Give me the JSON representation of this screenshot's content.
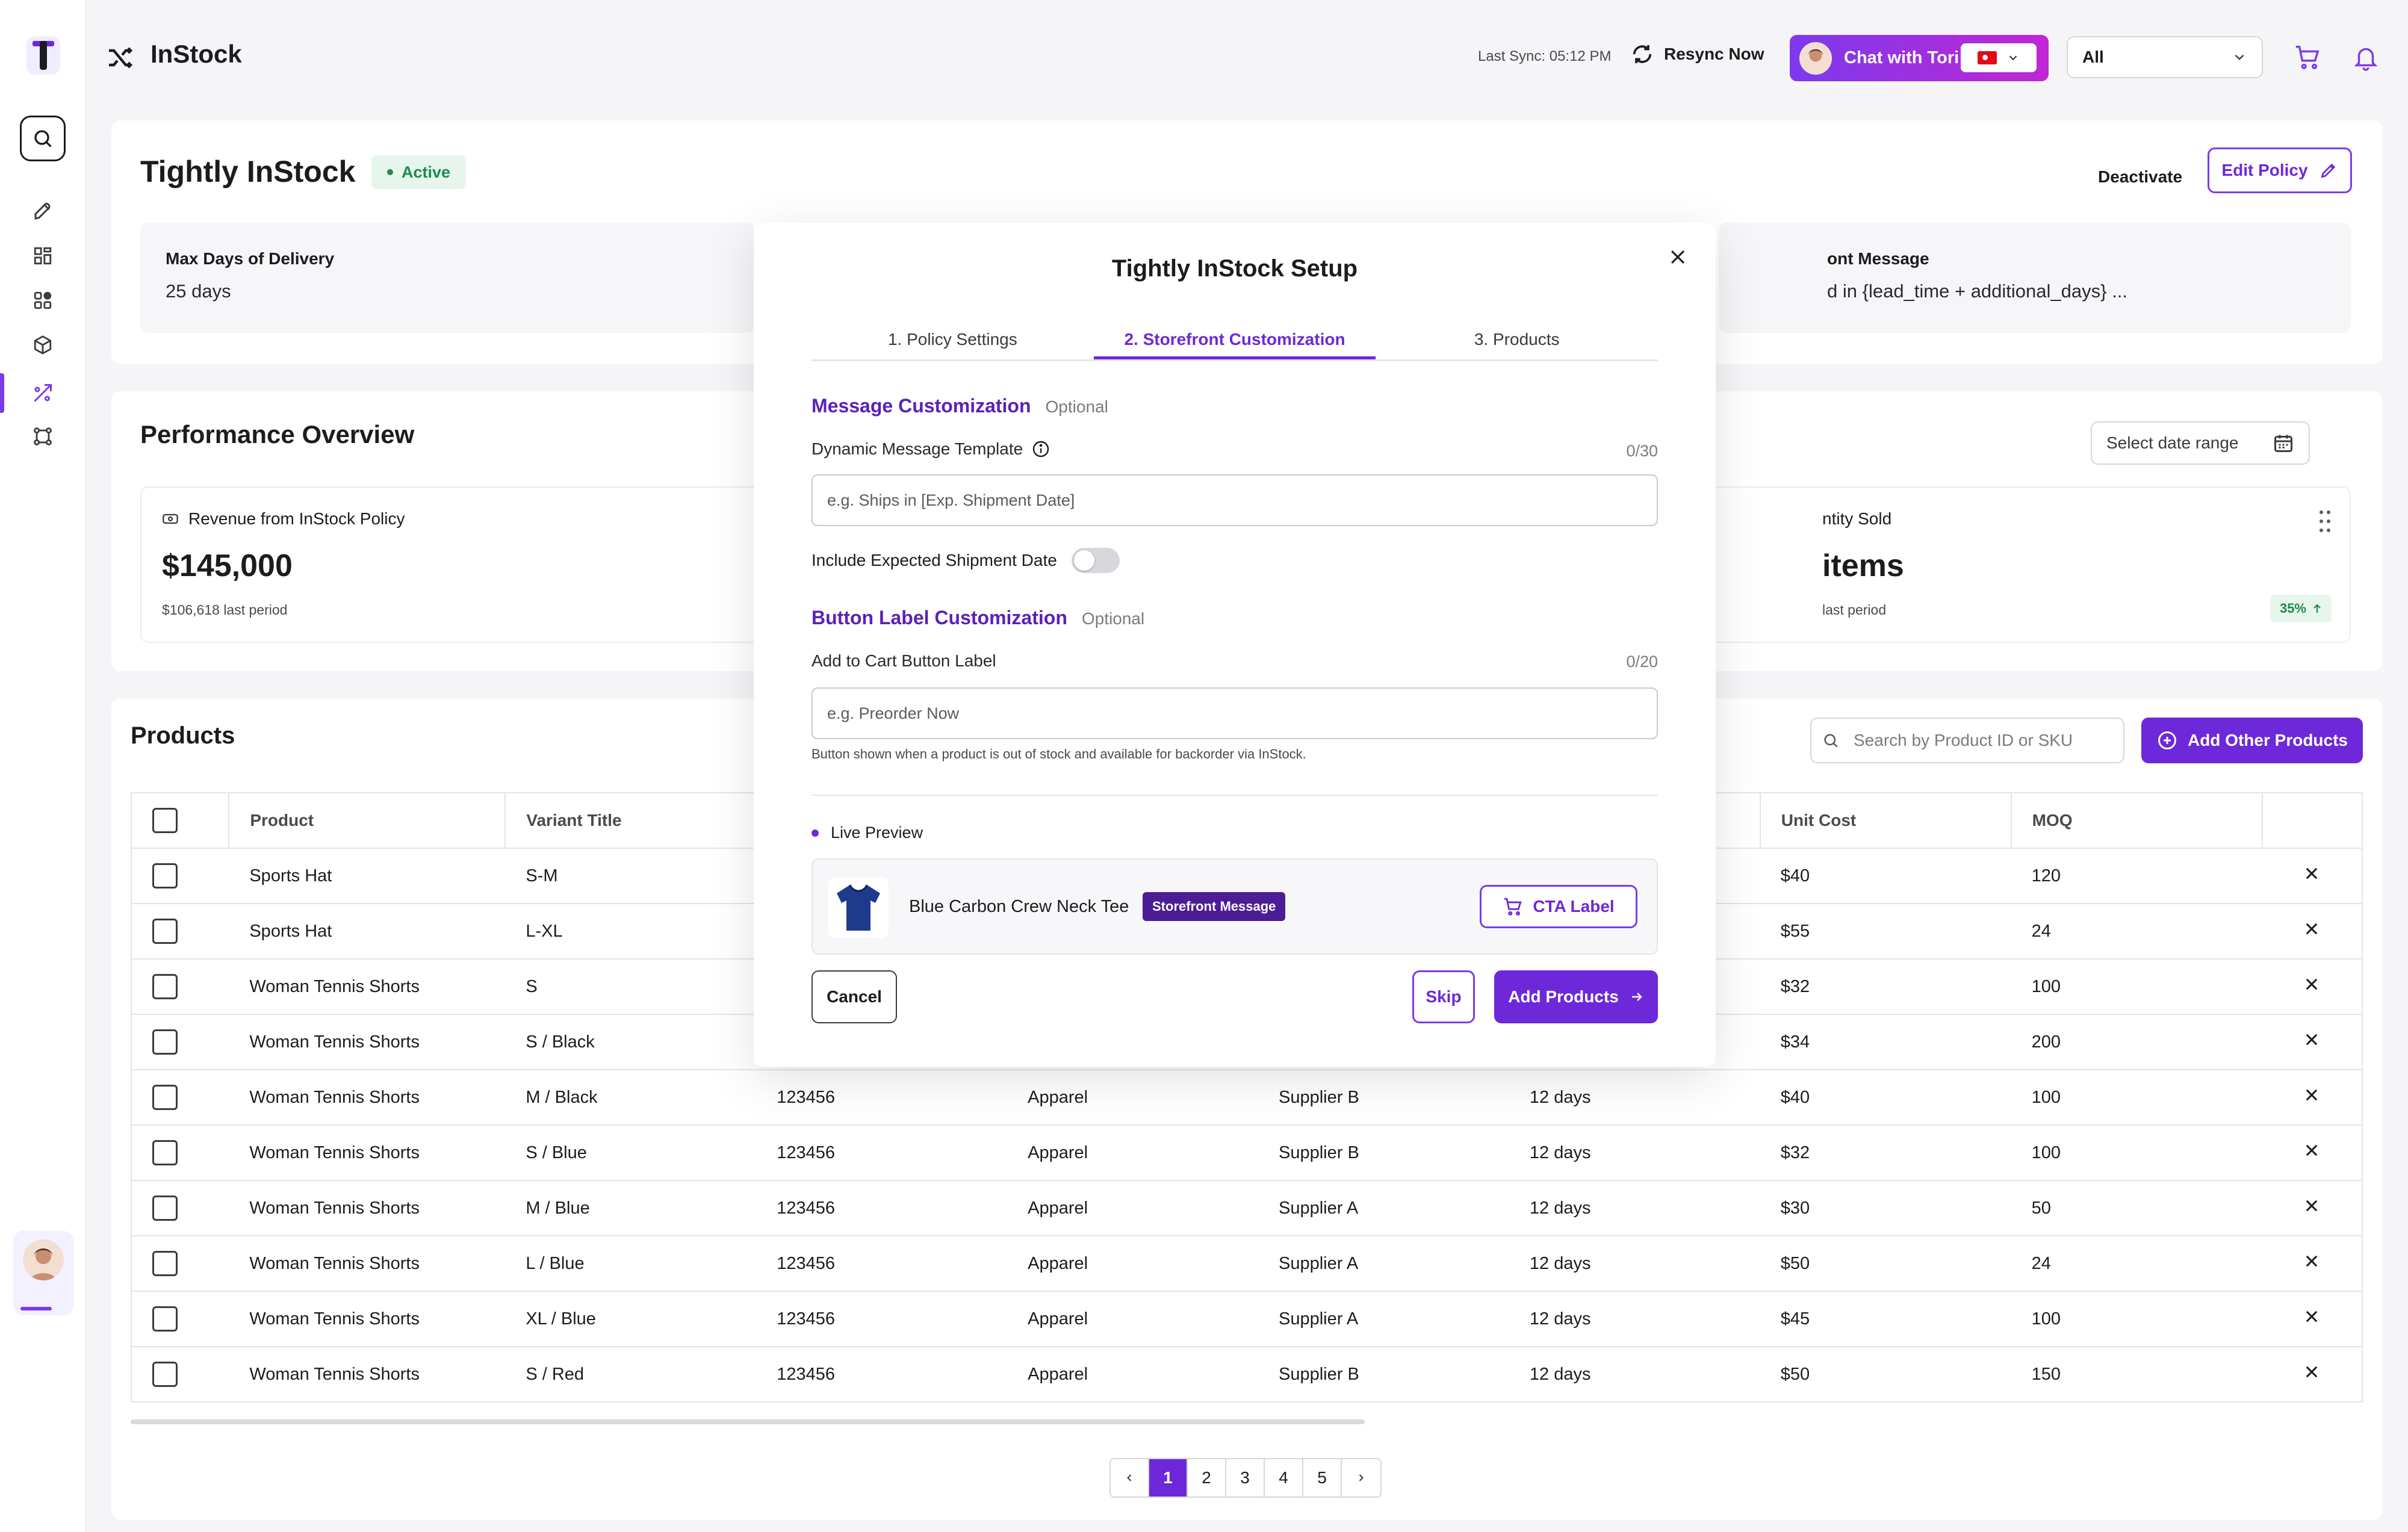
{
  "app": {
    "name": "InStock",
    "logo_letter": "T"
  },
  "header": {
    "last_sync": "Last Sync: 05:12 PM",
    "resync_label": "Resync Now",
    "chat_label": "Chat with Tori",
    "filter_value": "All"
  },
  "sidebar": {
    "items": [
      {
        "icon": "rocket-icon"
      },
      {
        "icon": "dashboard-icon"
      },
      {
        "icon": "apps-icon"
      },
      {
        "icon": "box-icon"
      },
      {
        "icon": "instock-icon",
        "active": true
      },
      {
        "icon": "workflow-icon"
      }
    ]
  },
  "policy": {
    "title": "Tightly InStock",
    "status": "Active",
    "deactivate_label": "Deactivate",
    "edit_label": "Edit Policy",
    "max_days_label": "Max Days of Delivery",
    "max_days_value": "25 days",
    "front_message_label": "ont Message",
    "front_message_value": "d in {lead_time + additional_days} ..."
  },
  "performance": {
    "title": "Performance Overview",
    "date_placeholder": "Select date range",
    "revenue_label": "Revenue from InStock Policy",
    "revenue_value": "$145,000",
    "revenue_sub": "$106,618 last period",
    "qty_label": "ntity Sold",
    "qty_value": "items",
    "qty_sub": "last period",
    "qty_change": "35%"
  },
  "products": {
    "title": "Products",
    "search_placeholder": "Search by Product ID or SKU",
    "add_label": "Add Other Products",
    "columns": [
      "Product",
      "Variant Title",
      "",
      "",
      "",
      "",
      "Unit Cost",
      "MOQ"
    ],
    "rows": [
      [
        "Sports Hat",
        "S-M",
        "",
        "",
        "",
        "",
        "$40",
        "120"
      ],
      [
        "Sports Hat",
        "L-XL",
        "",
        "",
        "",
        "",
        "$55",
        "24"
      ],
      [
        "Woman Tennis Shorts",
        "S",
        "",
        "",
        "",
        "",
        "$32",
        "100"
      ],
      [
        "Woman Tennis Shorts",
        "S / Black",
        "",
        "",
        "",
        "",
        "$34",
        "200"
      ],
      [
        "Woman Tennis Shorts",
        "M / Black",
        "123456",
        "Apparel",
        "Supplier B",
        "12 days",
        "$40",
        "100"
      ],
      [
        "Woman Tennis Shorts",
        "S / Blue",
        "123456",
        "Apparel",
        "Supplier B",
        "12 days",
        "$32",
        "100"
      ],
      [
        "Woman Tennis Shorts",
        "M / Blue",
        "123456",
        "Apparel",
        "Supplier A",
        "12 days",
        "$30",
        "50"
      ],
      [
        "Woman Tennis Shorts",
        "L / Blue",
        "123456",
        "Apparel",
        "Supplier A",
        "12 days",
        "$50",
        "24"
      ],
      [
        "Woman Tennis Shorts",
        "XL / Blue",
        "123456",
        "Apparel",
        "Supplier A",
        "12 days",
        "$45",
        "100"
      ],
      [
        "Woman Tennis Shorts",
        "S / Red",
        "123456",
        "Apparel",
        "Supplier B",
        "12 days",
        "$50",
        "150"
      ]
    ],
    "pages": [
      "1",
      "2",
      "3",
      "4",
      "5"
    ],
    "current_page": "1"
  },
  "modal": {
    "title": "Tightly InStock Setup",
    "tabs": [
      "1. Policy Settings",
      "2. Storefront Customization",
      "3. Products"
    ],
    "active_tab": 1,
    "message_section": "Message Customization",
    "optional": "Optional",
    "dynamic_label": "Dynamic Message Template",
    "dynamic_counter": "0/30",
    "dynamic_placeholder": "e.g. Ships in [Exp. Shipment Date]",
    "include_date_label": "Include Expected Shipment Date",
    "include_date_on": false,
    "button_section": "Button Label Customization",
    "cart_label": "Add to Cart Button Label",
    "cart_counter": "0/20",
    "cart_placeholder": "e.g. Preorder Now",
    "helper": "Button shown when a product is out of stock and available for backorder via InStock.",
    "live_preview": "Live Preview",
    "preview_product": "Blue Carbon Crew Neck Tee",
    "preview_badge": "Storefront Message",
    "preview_cta": "CTA Label",
    "cancel": "Cancel",
    "skip": "Skip",
    "add_products": "Add Products"
  },
  "colors": {
    "accent": "#6d28d9",
    "active_green": "#1f8a4c",
    "storefront_badge": "#4c1d95"
  }
}
